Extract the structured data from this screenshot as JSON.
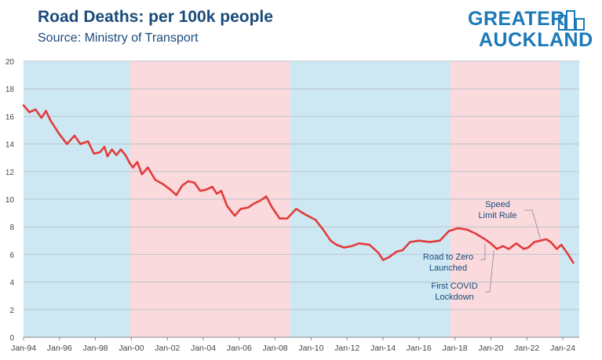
{
  "header": {
    "title": "Road Deaths: per 100k people",
    "subtitle": "Source: Ministry of Transport"
  },
  "logo": {
    "line1": "GREATER",
    "line2": "AUCKLAND",
    "color": "#1b79b9",
    "icon": "city-buildings-icon"
  },
  "chart_data": {
    "type": "line",
    "title": "Road Deaths: per 100k people",
    "subtitle": "Source: Ministry of Transport",
    "xlabel": "",
    "ylabel": "",
    "xlim": [
      "1994-01",
      "2024-12"
    ],
    "ylim": [
      0,
      20
    ],
    "yticks": [
      0,
      2,
      4,
      6,
      8,
      10,
      12,
      14,
      16,
      18,
      20
    ],
    "xtick_labels": [
      "Jan-94",
      "Jan-96",
      "Jan-98",
      "Jan-00",
      "Jan-02",
      "Jan-04",
      "Jan-06",
      "Jan-08",
      "Jan-10",
      "Jan-12",
      "Jan-14",
      "Jan-16",
      "Jan-18",
      "Jan-20",
      "Jan-22",
      "Jan-24"
    ],
    "grid": true,
    "line_color": "#e23b3b",
    "bands": [
      {
        "start": "1994-01",
        "end": "1999-12",
        "color": "#cde8f3"
      },
      {
        "start": "1999-12",
        "end": "2008-11",
        "color": "#fadadd"
      },
      {
        "start": "2008-11",
        "end": "2017-10",
        "color": "#cde8f3"
      },
      {
        "start": "2017-10",
        "end": "2023-11",
        "color": "#fadadd"
      },
      {
        "start": "2023-11",
        "end": "2024-12",
        "color": "#cde8f3"
      }
    ],
    "series": [
      {
        "points": [
          [
            "1994-01",
            16.8
          ],
          [
            "1994-05",
            16.3
          ],
          [
            "1994-09",
            16.5
          ],
          [
            "1995-01",
            15.9
          ],
          [
            "1995-04",
            16.4
          ],
          [
            "1995-07",
            15.7
          ],
          [
            "1996-01",
            14.7
          ],
          [
            "1996-06",
            14.0
          ],
          [
            "1996-11",
            14.6
          ],
          [
            "1997-03",
            14.0
          ],
          [
            "1997-08",
            14.2
          ],
          [
            "1997-12",
            13.3
          ],
          [
            "1998-04",
            13.4
          ],
          [
            "1998-07",
            13.8
          ],
          [
            "1998-09",
            13.1
          ],
          [
            "1998-12",
            13.6
          ],
          [
            "1999-03",
            13.2
          ],
          [
            "1999-06",
            13.6
          ],
          [
            "1999-09",
            13.2
          ],
          [
            "1999-12",
            12.6
          ],
          [
            "2000-02",
            12.3
          ],
          [
            "2000-05",
            12.7
          ],
          [
            "2000-08",
            11.8
          ],
          [
            "2000-12",
            12.3
          ],
          [
            "2001-05",
            11.4
          ],
          [
            "2001-10",
            11.1
          ],
          [
            "2002-03",
            10.7
          ],
          [
            "2002-07",
            10.3
          ],
          [
            "2002-11",
            11.0
          ],
          [
            "2003-03",
            11.3
          ],
          [
            "2003-07",
            11.2
          ],
          [
            "2003-11",
            10.6
          ],
          [
            "2004-03",
            10.7
          ],
          [
            "2004-07",
            10.9
          ],
          [
            "2004-10",
            10.4
          ],
          [
            "2005-01",
            10.6
          ],
          [
            "2005-05",
            9.5
          ],
          [
            "2005-10",
            8.8
          ],
          [
            "2006-02",
            9.3
          ],
          [
            "2006-07",
            9.4
          ],
          [
            "2006-11",
            9.7
          ],
          [
            "2007-03",
            9.9
          ],
          [
            "2007-07",
            10.2
          ],
          [
            "2007-11",
            9.4
          ],
          [
            "2008-04",
            8.6
          ],
          [
            "2008-09",
            8.6
          ],
          [
            "2009-03",
            9.3
          ],
          [
            "2009-09",
            8.9
          ],
          [
            "2010-04",
            8.5
          ],
          [
            "2010-09",
            7.8
          ],
          [
            "2011-02",
            7.0
          ],
          [
            "2011-06",
            6.7
          ],
          [
            "2011-11",
            6.5
          ],
          [
            "2012-04",
            6.6
          ],
          [
            "2012-09",
            6.8
          ],
          [
            "2013-04",
            6.7
          ],
          [
            "2013-10",
            6.1
          ],
          [
            "2014-01",
            5.6
          ],
          [
            "2014-05",
            5.8
          ],
          [
            "2014-10",
            6.2
          ],
          [
            "2015-02",
            6.3
          ],
          [
            "2015-07",
            6.9
          ],
          [
            "2016-01",
            7.0
          ],
          [
            "2016-08",
            6.9
          ],
          [
            "2017-03",
            7.0
          ],
          [
            "2017-09",
            7.7
          ],
          [
            "2018-03",
            7.9
          ],
          [
            "2018-09",
            7.8
          ],
          [
            "2019-03",
            7.5
          ],
          [
            "2019-09",
            7.1
          ],
          [
            "2020-01",
            6.8
          ],
          [
            "2020-05",
            6.4
          ],
          [
            "2020-09",
            6.6
          ],
          [
            "2021-01",
            6.4
          ],
          [
            "2021-06",
            6.8
          ],
          [
            "2021-11",
            6.4
          ],
          [
            "2022-02",
            6.5
          ],
          [
            "2022-06",
            6.9
          ],
          [
            "2022-10",
            7.0
          ],
          [
            "2023-02",
            7.1
          ],
          [
            "2023-05",
            6.9
          ],
          [
            "2023-09",
            6.4
          ],
          [
            "2023-12",
            6.7
          ],
          [
            "2024-04",
            6.1
          ],
          [
            "2024-08",
            5.4
          ]
        ]
      }
    ],
    "annotations": [
      {
        "lines": [
          "Speed",
          "Limit Rule"
        ],
        "target": "2022-10",
        "target_y": 6.9
      },
      {
        "lines": [
          "Road to Zero",
          "Launched"
        ],
        "target": "2019-09",
        "target_y": 7.0
      },
      {
        "lines": [
          "First COVID",
          "Lockdown"
        ],
        "target": "2020-03",
        "target_y": 6.5
      }
    ]
  }
}
